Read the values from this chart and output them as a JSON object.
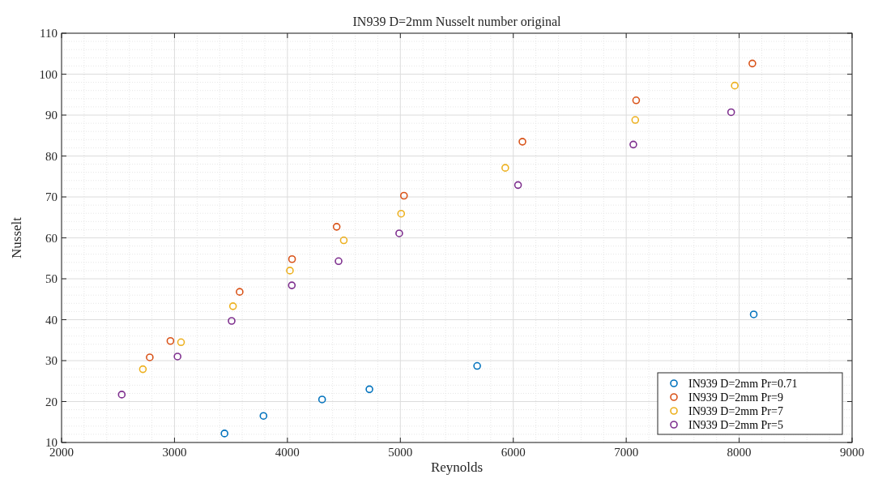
{
  "chart_data": {
    "type": "scatter",
    "title": "IN939 D=2mm Nusselt number original",
    "xlabel": "Reynolds",
    "ylabel": "Nusselt",
    "xlim": [
      2000,
      9000
    ],
    "xticks": [
      2000,
      3000,
      4000,
      5000,
      6000,
      7000,
      8000,
      9000
    ],
    "ylim": [
      10,
      110
    ],
    "yticks": [
      10,
      20,
      30,
      40,
      50,
      60,
      70,
      80,
      90,
      100,
      110
    ],
    "grid": true,
    "legend": "bottom right",
    "marker": "circle",
    "series": [
      {
        "name": "IN939 D=2mm Pr=0.71",
        "color": "#0072bd",
        "x": [
          3443,
          3788,
          4307,
          4726,
          5680,
          8129
        ],
        "values": [
          12.2,
          16.5,
          20.5,
          23.0,
          28.7,
          41.3
        ]
      },
      {
        "name": "IN939 D=2mm Pr=9",
        "color": "#d95319",
        "x": [
          2781,
          2964,
          3577,
          4041,
          4436,
          5032,
          6081,
          7088,
          8117
        ],
        "values": [
          30.8,
          34.8,
          46.8,
          54.8,
          62.7,
          70.3,
          83.5,
          93.6,
          102.6
        ]
      },
      {
        "name": "IN939 D=2mm Pr=7",
        "color": "#edb120",
        "x": [
          2720,
          3058,
          3518,
          4022,
          4499,
          5007,
          5929,
          7080,
          7961
        ],
        "values": [
          27.9,
          34.5,
          43.3,
          52.0,
          59.4,
          65.9,
          77.1,
          88.8,
          97.2
        ]
      },
      {
        "name": "IN939 D=2mm Pr=5",
        "color": "#7e2f8e",
        "x": [
          2533,
          3027,
          3506,
          4039,
          4453,
          4990,
          6042,
          7063,
          7929
        ],
        "values": [
          21.7,
          31.0,
          39.7,
          48.4,
          54.3,
          61.1,
          72.9,
          82.8,
          90.7
        ]
      }
    ]
  }
}
